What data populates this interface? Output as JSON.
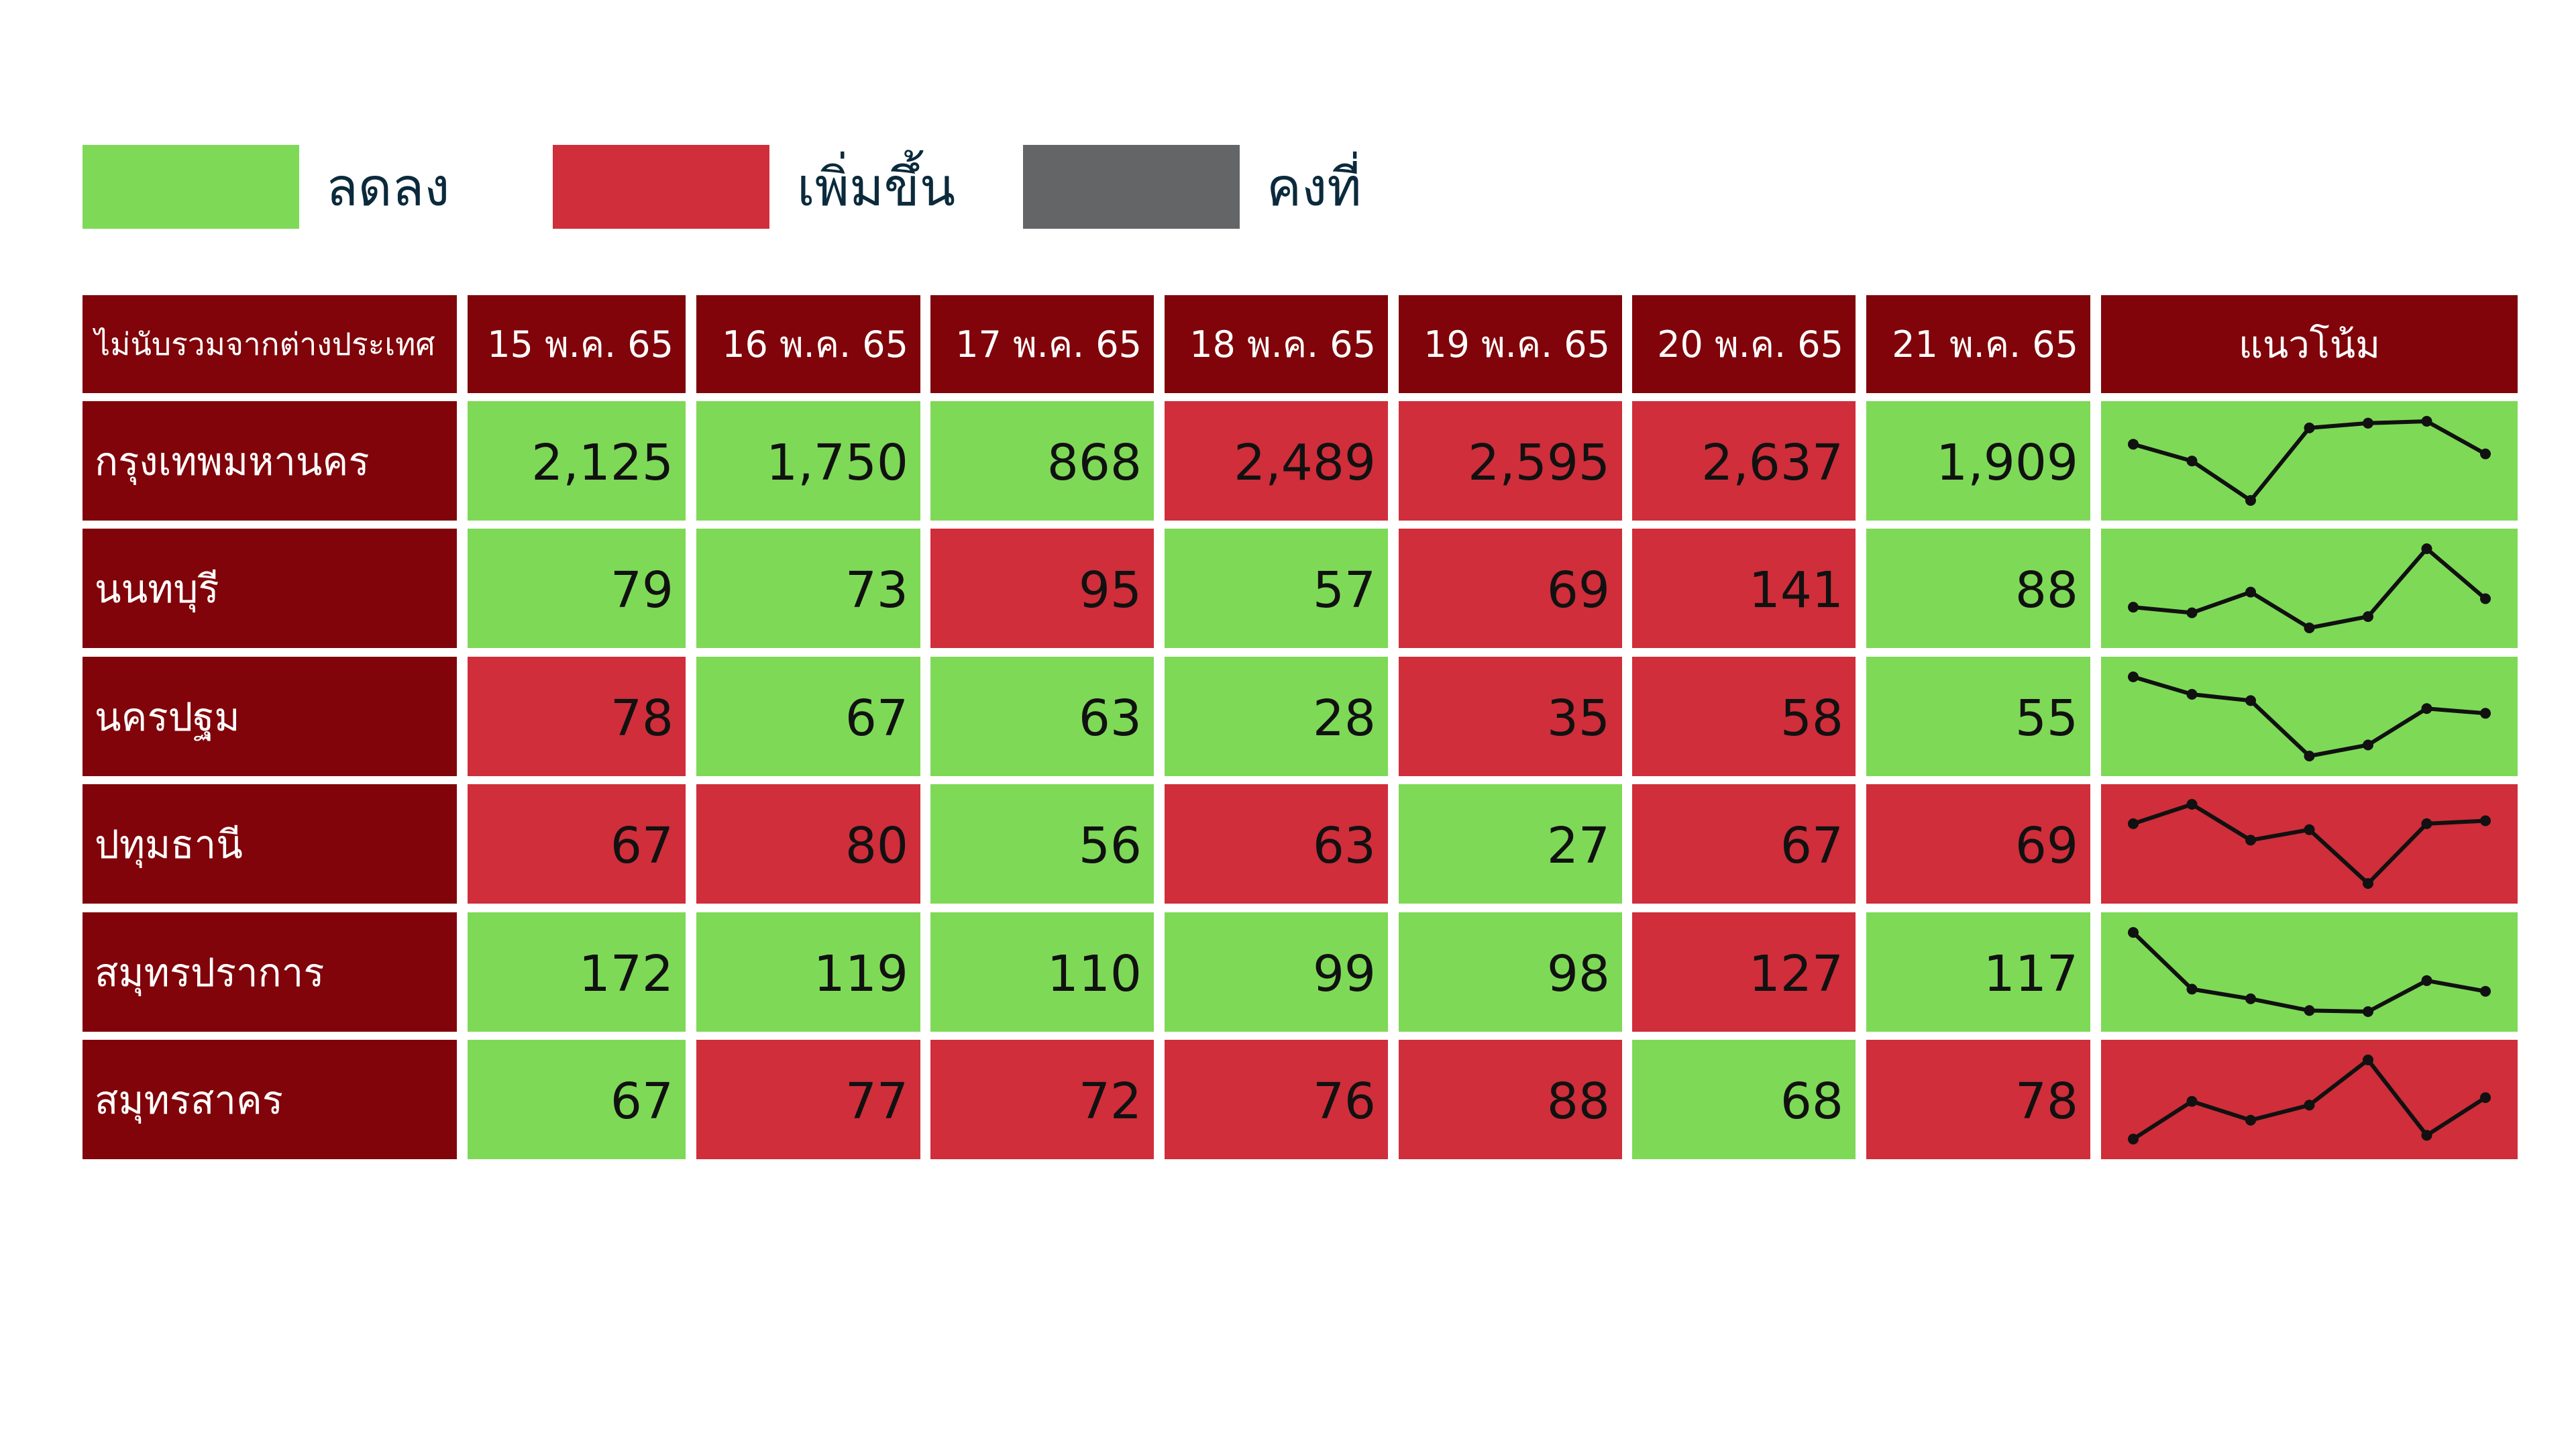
{
  "colors": {
    "decrease": "#7ed957",
    "increase": "#cf2e3a",
    "same": "#646567",
    "header": "#800409"
  },
  "legend": [
    {
      "key": "decrease",
      "label": "ลดลง"
    },
    {
      "key": "increase",
      "label": "เพิ่มขึ้น"
    },
    {
      "key": "same",
      "label": "คงที่"
    }
  ],
  "table": {
    "corner_label": "ไม่นับรวมจากต่างประเทศ",
    "trend_label": "แนวโน้ม",
    "dates": [
      "15  พ.ค. 65",
      "16 พ.ค. 65",
      "17 พ.ค. 65",
      "18 พ.ค. 65",
      "19 พ.ค. 65",
      "20 พ.ค. 65",
      "21 พ.ค. 65"
    ]
  },
  "chart_data": {
    "type": "table",
    "categories": [
      "15  พ.ค. 65",
      "16 พ.ค. 65",
      "17 พ.ค. 65",
      "18 พ.ค. 65",
      "19 พ.ค. 65",
      "20 พ.ค. 65",
      "21 พ.ค. 65"
    ],
    "series": [
      {
        "name": "กรุงเทพมหานคร",
        "values": [
          2125,
          1750,
          868,
          2489,
          2595,
          2637,
          1909
        ],
        "labels": [
          "2,125",
          "1,750",
          "868",
          "2,489",
          "2,595",
          "2,637",
          "1,909"
        ],
        "status": [
          "decrease",
          "decrease",
          "decrease",
          "increase",
          "increase",
          "increase",
          "decrease"
        ],
        "trend_status": "decrease"
      },
      {
        "name": "นนทบุรี",
        "values": [
          79,
          73,
          95,
          57,
          69,
          141,
          88
        ],
        "labels": [
          "79",
          "73",
          "95",
          "57",
          "69",
          "141",
          "88"
        ],
        "status": [
          "decrease",
          "decrease",
          "increase",
          "decrease",
          "increase",
          "increase",
          "decrease"
        ],
        "trend_status": "decrease"
      },
      {
        "name": "นครปฐม",
        "values": [
          78,
          67,
          63,
          28,
          35,
          58,
          55
        ],
        "labels": [
          "78",
          "67",
          "63",
          "28",
          "35",
          "58",
          "55"
        ],
        "status": [
          "increase",
          "decrease",
          "decrease",
          "decrease",
          "increase",
          "increase",
          "decrease"
        ],
        "trend_status": "decrease"
      },
      {
        "name": "ปทุมธานี",
        "values": [
          67,
          80,
          56,
          63,
          27,
          67,
          69
        ],
        "labels": [
          "67",
          "80",
          "56",
          "63",
          "27",
          "67",
          "69"
        ],
        "status": [
          "increase",
          "increase",
          "decrease",
          "increase",
          "decrease",
          "increase",
          "increase"
        ],
        "trend_status": "increase"
      },
      {
        "name": "สมุทรปราการ",
        "values": [
          172,
          119,
          110,
          99,
          98,
          127,
          117
        ],
        "labels": [
          "172",
          "119",
          "110",
          "99",
          "98",
          "127",
          "117"
        ],
        "status": [
          "decrease",
          "decrease",
          "decrease",
          "decrease",
          "decrease",
          "increase",
          "decrease"
        ],
        "trend_status": "decrease"
      },
      {
        "name": "สมุทรสาคร",
        "values": [
          67,
          77,
          72,
          76,
          88,
          68,
          78
        ],
        "labels": [
          "67",
          "77",
          "72",
          "76",
          "88",
          "68",
          "78"
        ],
        "status": [
          "decrease",
          "increase",
          "increase",
          "increase",
          "increase",
          "decrease",
          "increase"
        ],
        "trend_status": "increase"
      }
    ]
  }
}
